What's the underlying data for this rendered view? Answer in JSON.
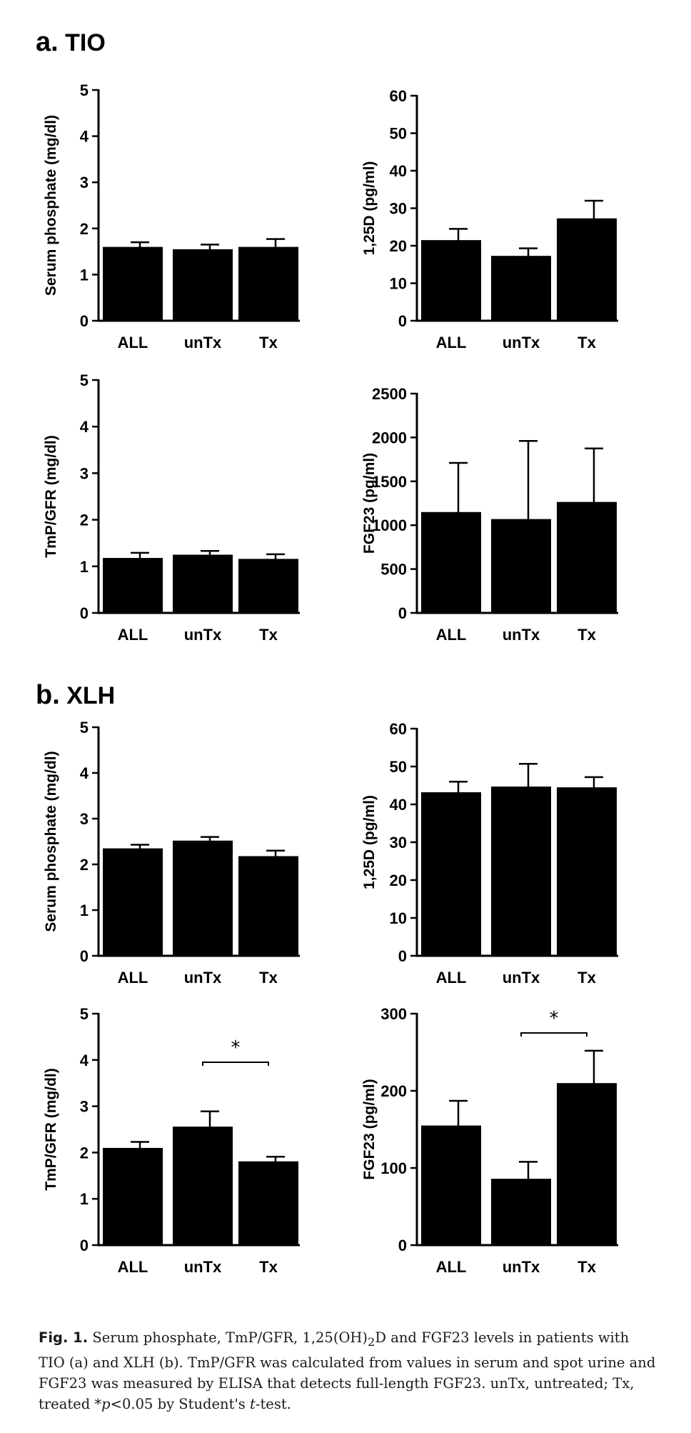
{
  "panels": [
    {
      "letter": "a.",
      "name": "TIO"
    },
    {
      "letter": "b.",
      "name": "XLH"
    }
  ],
  "chart_data": [
    {
      "type": "bar",
      "panel": "a",
      "ylabel": "Serum phosphate (mg/dl)",
      "categories": [
        "ALL",
        "unTx",
        "Tx"
      ],
      "values": [
        1.6,
        1.55,
        1.6
      ],
      "errors": [
        0.1,
        0.1,
        0.17
      ],
      "ylim": [
        0,
        5
      ],
      "yticks": [
        "0",
        "1",
        "2",
        "3",
        "4",
        "5"
      ],
      "significance": null
    },
    {
      "type": "bar",
      "panel": "a",
      "ylabel": "1,25D (pg/ml)",
      "categories": [
        "ALL",
        "unTx",
        "Tx"
      ],
      "values": [
        21.5,
        17.3,
        27.3
      ],
      "errors": [
        3.0,
        2.0,
        4.7
      ],
      "ylim": [
        0,
        60
      ],
      "yticks": [
        "0",
        "10",
        "20",
        "30",
        "40",
        "50",
        "60"
      ],
      "significance": null
    },
    {
      "type": "bar",
      "panel": "a",
      "ylabel": "TmP/GFR (mg/dl)",
      "categories": [
        "ALL",
        "unTx",
        "Tx"
      ],
      "values": [
        1.18,
        1.25,
        1.16
      ],
      "errors": [
        0.11,
        0.08,
        0.1
      ],
      "ylim": [
        0,
        5
      ],
      "yticks": [
        "0",
        "1",
        "2",
        "3",
        "4",
        "5"
      ],
      "significance": null
    },
    {
      "type": "bar",
      "panel": "a",
      "ylabel": "FGF23 (pg/ml)",
      "categories": [
        "ALL",
        "unTx",
        "Tx"
      ],
      "values": [
        1150,
        1070,
        1265
      ],
      "errors": [
        560,
        890,
        610
      ],
      "ylim": [
        0,
        2500
      ],
      "yticks": [
        "0",
        "500",
        "1000",
        "1500",
        "2000",
        "2500"
      ],
      "significance": null
    },
    {
      "type": "bar",
      "panel": "b",
      "ylabel": "Serum phosphate (mg/dl)",
      "categories": [
        "ALL",
        "unTx",
        "Tx"
      ],
      "values": [
        2.35,
        2.52,
        2.18
      ],
      "errors": [
        0.08,
        0.08,
        0.12
      ],
      "ylim": [
        0,
        5
      ],
      "yticks": [
        "0",
        "1",
        "2",
        "3",
        "4",
        "5"
      ],
      "significance": null
    },
    {
      "type": "bar",
      "panel": "b",
      "ylabel": "1,25D (pg/ml)",
      "categories": [
        "ALL",
        "unTx",
        "Tx"
      ],
      "values": [
        43.2,
        44.7,
        44.5
      ],
      "errors": [
        2.8,
        6.0,
        2.7
      ],
      "ylim": [
        0,
        60
      ],
      "yticks": [
        "0",
        "10",
        "20",
        "30",
        "40",
        "50",
        "60"
      ],
      "significance": null
    },
    {
      "type": "bar",
      "panel": "b",
      "ylabel": "TmP/GFR (mg/dl)",
      "categories": [
        "ALL",
        "unTx",
        "Tx"
      ],
      "values": [
        2.1,
        2.56,
        1.81
      ],
      "errors": [
        0.13,
        0.33,
        0.1
      ],
      "ylim": [
        0,
        5
      ],
      "yticks": [
        "0",
        "1",
        "2",
        "3",
        "4",
        "5"
      ],
      "significance": {
        "from": 1,
        "to": 2,
        "y": 3.95,
        "label": "*"
      }
    },
    {
      "type": "bar",
      "panel": "b",
      "ylabel": "FGF23 (pg/ml)",
      "categories": [
        "ALL",
        "unTx",
        "Tx"
      ],
      "values": [
        155,
        86,
        210
      ],
      "errors": [
        32,
        22,
        42
      ],
      "ylim": [
        0,
        300
      ],
      "yticks": [
        "0",
        "100",
        "200",
        "300"
      ],
      "significance": {
        "from": 1,
        "to": 2,
        "y": 275,
        "label": "*"
      }
    }
  ],
  "caption": {
    "fig_label": "Fig. 1.",
    "line1_a": "Serum phosphate, TmP/GFR, 1,25(OH)",
    "line1_sub": "2",
    "line1_b": "D and FGF23 levels in patients with TIO (a)",
    "line2": "and XLH (b). TmP/GFR was calculated from values in serum and spot urine and FGF23",
    "line3": "was measured by ELISA that detects full-length FGF23. unTx, untreated; Tx, treated",
    "line4_a": "*",
    "line4_p": "p",
    "line4_b": "<0.05 by Student's ",
    "line4_t": "t",
    "line4_c": "-test."
  }
}
